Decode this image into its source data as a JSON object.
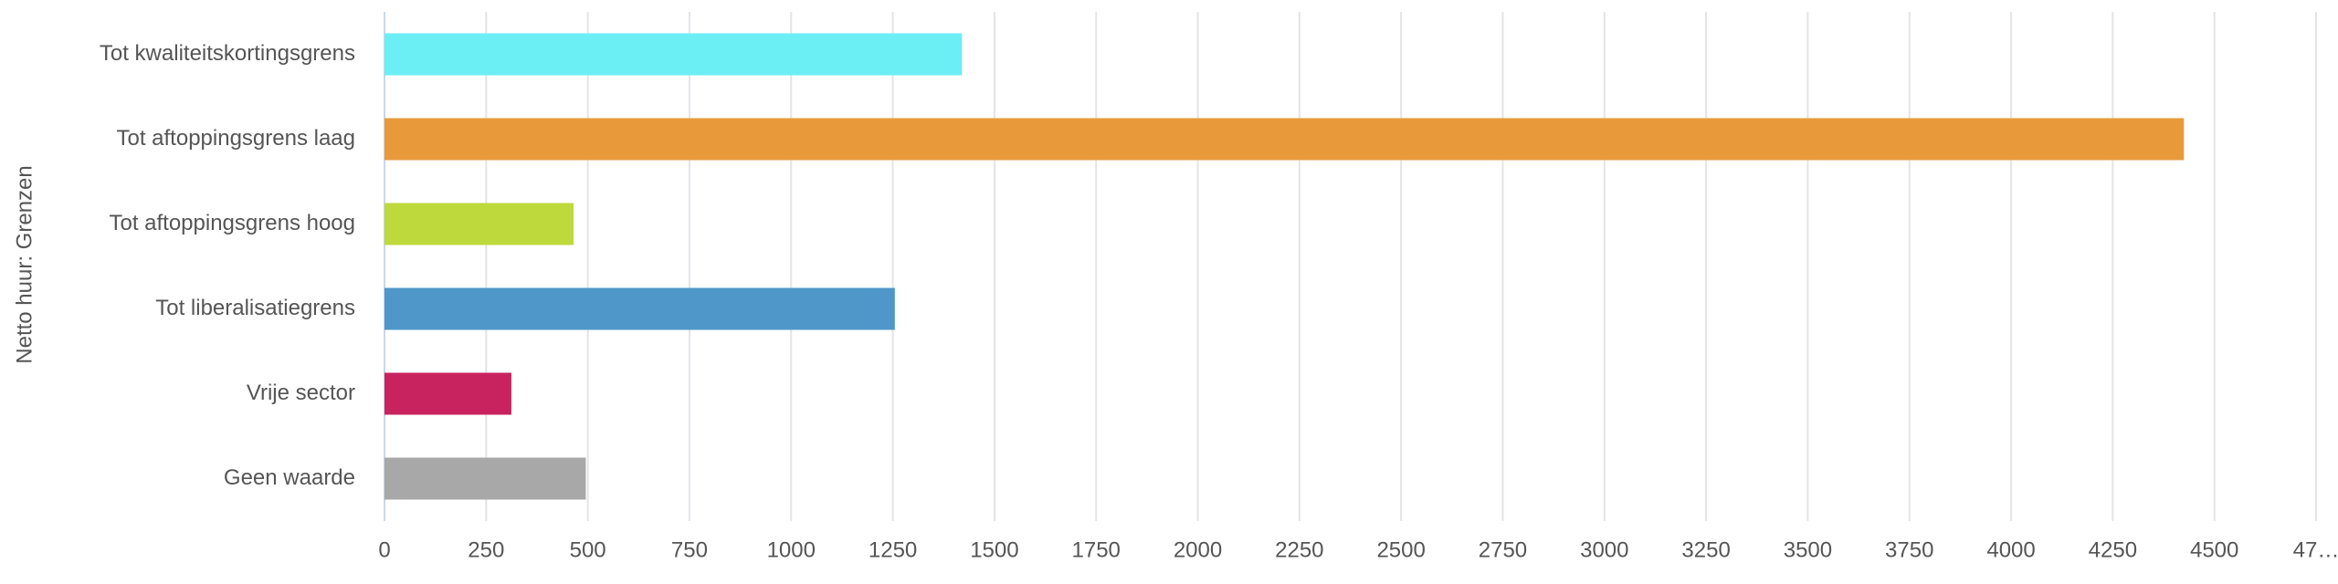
{
  "chart_data": {
    "type": "bar",
    "orientation": "horizontal",
    "y_label": "Netto huur: Grenzen",
    "categories": [
      "Tot kwaliteitskortingsgrens",
      "Tot aftoppingsgrens laag",
      "Tot aftoppingsgrens hoog",
      "Tot liberalisatiegrens",
      "Vrije sector",
      "Geen waarde"
    ],
    "values": [
      1420,
      4425,
      465,
      1255,
      312,
      495
    ],
    "colors": [
      "#6beef4",
      "#e89a3a",
      "#bdd93c",
      "#4f97c8",
      "#c8235f",
      "#a8a8a8"
    ],
    "xlim": [
      0,
      4750
    ],
    "xticks": [
      0,
      250,
      500,
      750,
      1000,
      1250,
      1500,
      1750,
      2000,
      2250,
      2500,
      2750,
      3000,
      3250,
      3500,
      3750,
      4000,
      4250,
      4500,
      {
        "value": 4750,
        "label": "47…"
      }
    ],
    "grid": true
  }
}
